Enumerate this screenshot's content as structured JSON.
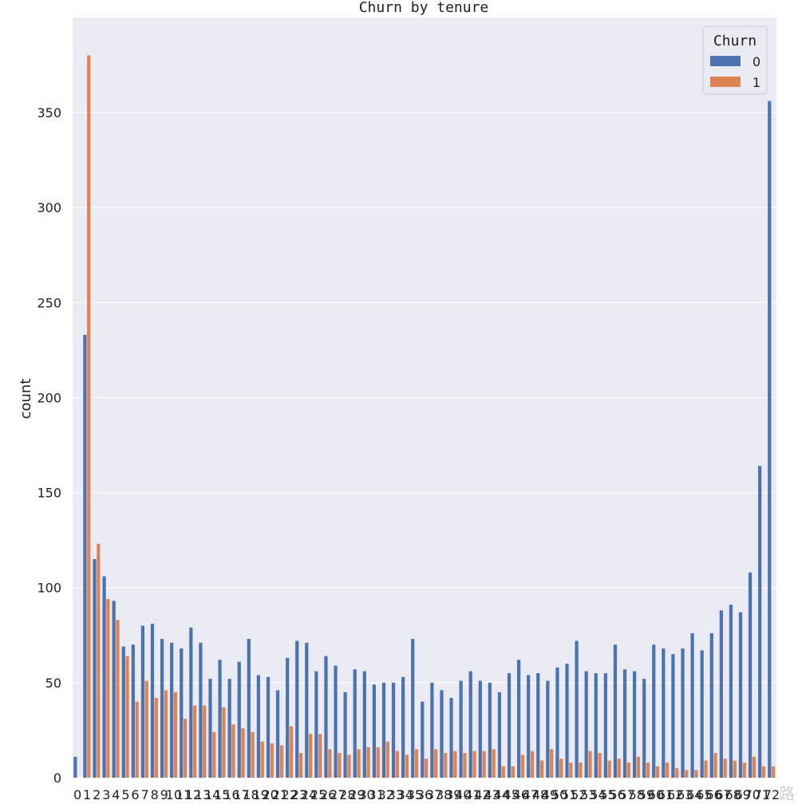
{
  "chart_data": {
    "type": "bar",
    "title": "Churn by tenure",
    "xlabel": "",
    "ylabel": "count",
    "ylim": [
      0,
      380
    ],
    "yticks": [
      0,
      50,
      100,
      150,
      200,
      250,
      300,
      350
    ],
    "grid": true,
    "legend": {
      "title": "Churn",
      "placement": "top-right"
    },
    "categories": [
      "0",
      "1",
      "2",
      "3",
      "4",
      "5",
      "6",
      "7",
      "8",
      "9",
      "10",
      "11",
      "12",
      "13",
      "14",
      "15",
      "16",
      "17",
      "18",
      "19",
      "20",
      "21",
      "22",
      "23",
      "24",
      "25",
      "26",
      "27",
      "28",
      "29",
      "30",
      "31",
      "32",
      "33",
      "34",
      "35",
      "36",
      "37",
      "38",
      "39",
      "40",
      "41",
      "42",
      "43",
      "44",
      "45",
      "46",
      "47",
      "48",
      "49",
      "50",
      "51",
      "52",
      "53",
      "54",
      "55",
      "56",
      "57",
      "58",
      "59",
      "60",
      "61",
      "62",
      "63",
      "64",
      "65",
      "66",
      "67",
      "68",
      "69",
      "70",
      "71",
      "72"
    ],
    "series": [
      {
        "name": "0",
        "color": "#4c72b0",
        "values": [
          11,
          233,
          115,
          106,
          93,
          69,
          70,
          80,
          81,
          73,
          71,
          68,
          79,
          71,
          52,
          62,
          52,
          61,
          73,
          54,
          53,
          46,
          63,
          72,
          71,
          56,
          64,
          59,
          45,
          57,
          56,
          49,
          50,
          50,
          53,
          73,
          40,
          50,
          46,
          42,
          51,
          56,
          51,
          50,
          45,
          55,
          62,
          54,
          55,
          51,
          58,
          60,
          72,
          56,
          55,
          55,
          70,
          57,
          56,
          52,
          70,
          68,
          65,
          68,
          76,
          67,
          76,
          88,
          91,
          87,
          108,
          164,
          356
        ]
      },
      {
        "name": "1",
        "color": "#dd8452",
        "values": [
          0,
          380,
          123,
          94,
          83,
          64,
          40,
          51,
          42,
          46,
          45,
          31,
          38,
          38,
          24,
          37,
          28,
          26,
          24,
          19,
          18,
          17,
          27,
          13,
          23,
          23,
          15,
          13,
          12,
          15,
          16,
          16,
          19,
          14,
          12,
          15,
          10,
          15,
          13,
          14,
          13,
          14,
          14,
          15,
          6,
          6,
          12,
          14,
          9,
          15,
          10,
          8,
          8,
          14,
          13,
          9,
          10,
          8,
          11,
          8,
          6,
          8,
          5,
          4,
          4,
          9,
          13,
          10,
          9,
          8,
          11,
          6,
          6
        ]
      }
    ]
  },
  "watermark": "路"
}
